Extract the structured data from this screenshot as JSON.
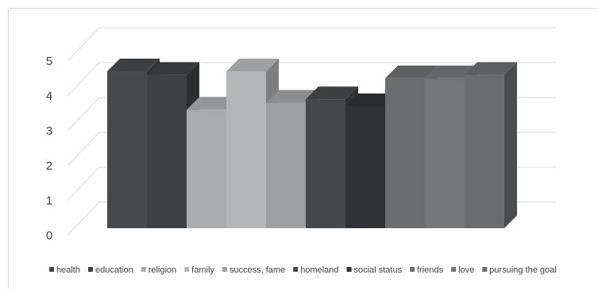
{
  "chart_data": {
    "type": "bar",
    "title": "",
    "xlabel": "",
    "ylabel": "",
    "ylim": [
      0,
      5
    ],
    "yticks": [
      "0",
      "1",
      "2",
      "3",
      "4",
      "5"
    ],
    "grid": true,
    "style": "3d-column",
    "legend_position": "bottom",
    "categories": [
      "health",
      "education",
      "religion",
      "family",
      "success, fame",
      "homeland",
      "social status",
      "friends",
      "love",
      "pursuing the goal"
    ],
    "values": [
      4.5,
      4.4,
      3.4,
      4.5,
      3.6,
      3.7,
      3.5,
      4.3,
      4.3,
      4.4
    ],
    "colors": [
      "#474a4d",
      "#3e4143",
      "#a9abac",
      "#b5b6b7",
      "#9e9fa0",
      "#45484a",
      "#303234",
      "#6b6d6f",
      "#737577",
      "#6a6c6e"
    ]
  }
}
